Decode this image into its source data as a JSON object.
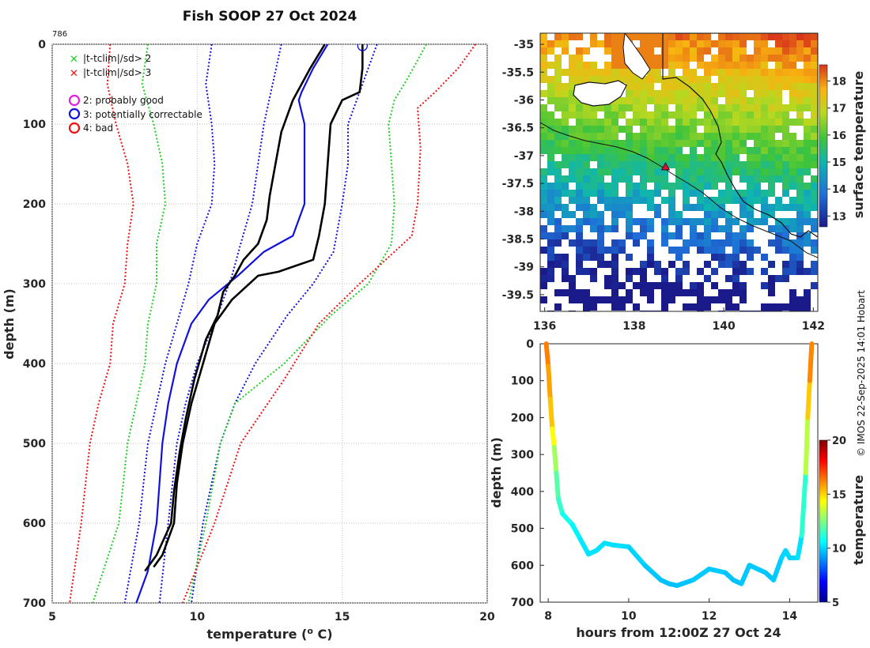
{
  "title": "Fish SOOP 27 Oct 2024",
  "profile_id": "786",
  "watermark": "© IMOS 22-Sep-2025 14:01 Hobart",
  "legend": {
    "flags": [
      {
        "symbol": "✕",
        "color": "#22cc22",
        "label": "|t-tclim|/sd> 2"
      },
      {
        "symbol": "✕",
        "color": "#ee1111",
        "label": "|t-tclim|/sd> 3"
      }
    ],
    "qc": [
      {
        "color": "#e020e0",
        "label": "2: probably good"
      },
      {
        "color": "#1111dd",
        "label": "3: potentially correctable"
      },
      {
        "color": "#ee1111",
        "label": "4: bad"
      }
    ]
  },
  "chart_data": [
    {
      "type": "line",
      "name": "temperature-depth profile",
      "xlabel": "temperature (°C)",
      "ylabel": "depth (m)",
      "xlim": [
        5,
        20
      ],
      "ylim": [
        700,
        0
      ],
      "xticks": [
        5,
        10,
        15,
        20
      ],
      "yticks": [
        0,
        100,
        200,
        300,
        400,
        500,
        600,
        700
      ],
      "flagged_point": {
        "t": 15.7,
        "d": 2,
        "qc": "3: potentially correctable"
      },
      "series": [
        {
          "name": "clim -3sd",
          "color": "#ee1111",
          "style": "dotted",
          "points": [
            [
              7.0,
              0
            ],
            [
              6.9,
              50
            ],
            [
              7.2,
              100
            ],
            [
              7.6,
              150
            ],
            [
              7.8,
              200
            ],
            [
              7.6,
              250
            ],
            [
              7.5,
              300
            ],
            [
              7.1,
              350
            ],
            [
              7.0,
              400
            ],
            [
              6.6,
              450
            ],
            [
              6.3,
              500
            ],
            [
              6.0,
              600
            ],
            [
              5.6,
              700
            ]
          ]
        },
        {
          "name": "clim -2sd",
          "color": "#22cc22",
          "style": "dotted",
          "points": [
            [
              8.3,
              0
            ],
            [
              8.1,
              50
            ],
            [
              8.5,
              100
            ],
            [
              8.8,
              150
            ],
            [
              8.9,
              200
            ],
            [
              8.6,
              250
            ],
            [
              8.6,
              300
            ],
            [
              8.3,
              350
            ],
            [
              8.2,
              400
            ],
            [
              7.9,
              450
            ],
            [
              7.6,
              500
            ],
            [
              7.3,
              600
            ],
            [
              6.4,
              700
            ]
          ]
        },
        {
          "name": "clim -1sd",
          "color": "#1111dd",
          "style": "dotted",
          "points": [
            [
              10.5,
              0
            ],
            [
              10.3,
              50
            ],
            [
              10.5,
              100
            ],
            [
              10.6,
              150
            ],
            [
              10.5,
              200
            ],
            [
              10.0,
              250
            ],
            [
              9.7,
              300
            ],
            [
              9.3,
              350
            ],
            [
              8.9,
              400
            ],
            [
              8.6,
              450
            ],
            [
              8.3,
              500
            ],
            [
              8.0,
              600
            ],
            [
              7.5,
              700
            ]
          ]
        },
        {
          "name": "clim -1sd inner",
          "color": "#1111dd",
          "style": "dotted",
          "points": [
            [
              12.9,
              0
            ],
            [
              12.6,
              50
            ],
            [
              12.3,
              100
            ],
            [
              12.1,
              150
            ],
            [
              11.9,
              200
            ],
            [
              11.5,
              250
            ],
            [
              11.2,
              290
            ],
            [
              10.7,
              340
            ],
            [
              10.0,
              400
            ],
            [
              9.6,
              450
            ],
            [
              9.3,
              500
            ],
            [
              9.0,
              600
            ],
            [
              8.7,
              700
            ]
          ]
        },
        {
          "name": "clim +1sd",
          "color": "#1111dd",
          "style": "dotted",
          "points": [
            [
              16.2,
              0
            ],
            [
              15.7,
              50
            ],
            [
              15.2,
              100
            ],
            [
              15.2,
              150
            ],
            [
              15.0,
              200
            ],
            [
              14.7,
              260
            ],
            [
              14.0,
              300
            ],
            [
              13.1,
              340
            ],
            [
              12.0,
              400
            ],
            [
              11.3,
              450
            ],
            [
              10.8,
              500
            ],
            [
              10.2,
              600
            ],
            [
              9.8,
              700
            ]
          ]
        },
        {
          "name": "clim +2sd",
          "color": "#22cc22",
          "style": "dotted",
          "points": [
            [
              17.9,
              0
            ],
            [
              17.3,
              40
            ],
            [
              16.8,
              70
            ],
            [
              16.6,
              100
            ],
            [
              16.7,
              150
            ],
            [
              16.8,
              200
            ],
            [
              16.7,
              250
            ],
            [
              15.9,
              300
            ],
            [
              14.6,
              340
            ],
            [
              13.0,
              400
            ],
            [
              11.3,
              450
            ],
            [
              10.8,
              500
            ],
            [
              10.3,
              600
            ],
            [
              9.7,
              700
            ]
          ]
        },
        {
          "name": "clim +3sd",
          "color": "#ee1111",
          "style": "dotted",
          "points": [
            [
              19.6,
              0
            ],
            [
              19.0,
              30
            ],
            [
              18.2,
              60
            ],
            [
              17.6,
              80
            ],
            [
              17.7,
              130
            ],
            [
              17.6,
              200
            ],
            [
              17.4,
              240
            ],
            [
              16.8,
              260
            ],
            [
              15.6,
              300
            ],
            [
              14.2,
              350
            ],
            [
              13.0,
              420
            ],
            [
              11.5,
              500
            ],
            [
              10.6,
              600
            ],
            [
              9.5,
              700
            ]
          ]
        },
        {
          "name": "reference profile",
          "color": "#1111dd",
          "style": "solid",
          "width": 2.2,
          "points": [
            [
              14.5,
              0
            ],
            [
              14.0,
              30
            ],
            [
              13.6,
              60
            ],
            [
              13.5,
              70
            ],
            [
              13.7,
              100
            ],
            [
              13.7,
              150
            ],
            [
              13.7,
              200
            ],
            [
              13.3,
              240
            ],
            [
              12.3,
              260
            ],
            [
              11.4,
              290
            ],
            [
              10.4,
              320
            ],
            [
              9.8,
              350
            ],
            [
              9.3,
              400
            ],
            [
              9.0,
              450
            ],
            [
              8.8,
              500
            ],
            [
              8.6,
              600
            ],
            [
              8.3,
              660
            ],
            [
              7.9,
              700
            ]
          ]
        },
        {
          "name": "measured profile A",
          "color": "#000000",
          "style": "solid",
          "width": 2.6,
          "points": [
            [
              14.4,
              0
            ],
            [
              13.9,
              30
            ],
            [
              13.3,
              70
            ],
            [
              12.9,
              110
            ],
            [
              12.7,
              150
            ],
            [
              12.5,
              190
            ],
            [
              12.4,
              220
            ],
            [
              12.1,
              250
            ],
            [
              11.6,
              270
            ],
            [
              11.3,
              290
            ],
            [
              10.9,
              310
            ],
            [
              10.7,
              340
            ],
            [
              10.3,
              370
            ],
            [
              9.9,
              420
            ],
            [
              9.6,
              470
            ],
            [
              9.4,
              510
            ],
            [
              9.2,
              560
            ],
            [
              9.1,
              600
            ],
            [
              8.6,
              640
            ],
            [
              8.2,
              660
            ]
          ]
        },
        {
          "name": "measured profile B",
          "color": "#000000",
          "style": "solid",
          "width": 2.6,
          "points": [
            [
              15.7,
              0
            ],
            [
              15.7,
              30
            ],
            [
              15.6,
              60
            ],
            [
              15.0,
              70
            ],
            [
              14.6,
              100
            ],
            [
              14.5,
              150
            ],
            [
              14.4,
              200
            ],
            [
              14.2,
              240
            ],
            [
              14.0,
              270
            ],
            [
              12.8,
              285
            ],
            [
              12.1,
              290
            ],
            [
              11.2,
              320
            ],
            [
              10.6,
              350
            ],
            [
              10.2,
              400
            ],
            [
              9.8,
              450
            ],
            [
              9.5,
              500
            ],
            [
              9.3,
              550
            ],
            [
              9.2,
              600
            ],
            [
              8.8,
              640
            ],
            [
              8.5,
              655
            ]
          ]
        }
      ]
    },
    {
      "type": "heatmap",
      "name": "surface temperature map",
      "colorbar_label": "surface temperature",
      "xlim": [
        135.9,
        142.1
      ],
      "ylim": [
        -39.8,
        -34.8
      ],
      "xticks": [
        136,
        138,
        140,
        142
      ],
      "yticks": [
        -35,
        -35.5,
        -36,
        -36.5,
        -37,
        -37.5,
        -38,
        -38.5,
        -39,
        -39.5
      ],
      "colorbar_range": [
        12.6,
        18.6
      ],
      "colorbar_ticks": [
        13,
        14,
        15,
        16,
        17,
        18
      ],
      "marker": {
        "lon": 138.7,
        "lat": -37.2,
        "color": "#dd1133"
      }
    },
    {
      "type": "scatter",
      "name": "depth-time track",
      "xlabel": "hours from 12:00Z 27 Oct 24",
      "ylabel": "depth (m)",
      "colorbar_label": "temperature",
      "xlim": [
        7.8,
        14.7
      ],
      "ylim": [
        700,
        0
      ],
      "xticks": [
        8,
        10,
        12,
        14
      ],
      "yticks": [
        0,
        100,
        200,
        300,
        400,
        500,
        600,
        700
      ],
      "colorbar_range": [
        5,
        20
      ],
      "colorbar_ticks": [
        5,
        10,
        15,
        20
      ],
      "track": [
        [
          7.95,
          0,
          16.5
        ],
        [
          8.0,
          60,
          16.0
        ],
        [
          8.05,
          150,
          15.5
        ],
        [
          8.1,
          230,
          15.0
        ],
        [
          8.15,
          280,
          13.8
        ],
        [
          8.2,
          350,
          12.2
        ],
        [
          8.25,
          420,
          11.6
        ],
        [
          8.35,
          460,
          11.2
        ],
        [
          8.6,
          490,
          10.6
        ],
        [
          8.8,
          530,
          10.4
        ],
        [
          9.0,
          570,
          10.2
        ],
        [
          9.2,
          560,
          10.2
        ],
        [
          9.4,
          540,
          10.2
        ],
        [
          9.6,
          545,
          10.2
        ],
        [
          10.0,
          550,
          10.1
        ],
        [
          10.4,
          600,
          9.9
        ],
        [
          10.8,
          640,
          9.7
        ],
        [
          11.0,
          650,
          9.7
        ],
        [
          11.2,
          655,
          9.7
        ],
        [
          11.6,
          640,
          9.8
        ],
        [
          12.0,
          610,
          9.9
        ],
        [
          12.4,
          620,
          9.8
        ],
        [
          12.6,
          640,
          9.7
        ],
        [
          12.8,
          650,
          9.7
        ],
        [
          13.0,
          600,
          9.9
        ],
        [
          13.4,
          620,
          9.8
        ],
        [
          13.6,
          640,
          9.7
        ],
        [
          13.8,
          580,
          10.0
        ],
        [
          13.9,
          560,
          10.1
        ],
        [
          14.0,
          580,
          10.0
        ],
        [
          14.2,
          580,
          10.0
        ],
        [
          14.3,
          520,
          10.4
        ],
        [
          14.4,
          350,
          12.2
        ],
        [
          14.45,
          200,
          14.5
        ],
        [
          14.5,
          100,
          15.8
        ],
        [
          14.55,
          0,
          16.5
        ]
      ]
    }
  ]
}
